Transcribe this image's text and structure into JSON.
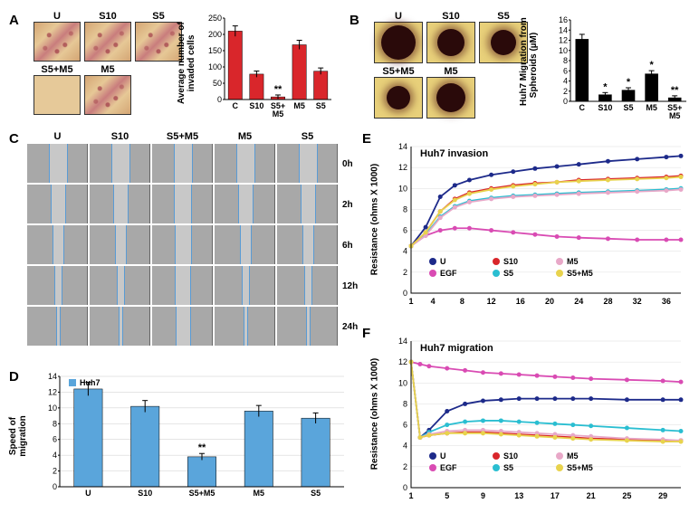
{
  "panels": {
    "A": {
      "label": "A"
    },
    "B": {
      "label": "B"
    },
    "C": {
      "label": "C"
    },
    "D": {
      "label": "D"
    },
    "E": {
      "label": "E"
    },
    "F": {
      "label": "F"
    }
  },
  "conditions": {
    "U": "U",
    "S10": "S10",
    "S5": "S5",
    "S5M5": "S5+M5",
    "M5": "M5",
    "EGF": "EGF",
    "S5+M5": "S5+M5"
  },
  "timepoints": [
    "0h",
    "2h",
    "6h",
    "12h",
    "24h"
  ],
  "chartA": {
    "type": "bar",
    "ylabel": "Average number of\ninvaded cells",
    "categories": [
      "C",
      "S10",
      "S5+\nM5",
      "M5",
      "S5"
    ],
    "values": [
      210,
      78,
      8,
      168,
      87
    ],
    "ylim": [
      0,
      250
    ],
    "ytick_step": 50,
    "bar_color": "#d9262b",
    "sig_marks": {
      "S5+\nM5": "**"
    },
    "axis_color": "#000000",
    "tick_fontsize": 9,
    "label_fontsize": 10
  },
  "chartB": {
    "type": "bar",
    "ylabel": "Huh7 Migration from\nSpheroids (µM)",
    "categories": [
      "C",
      "S10",
      "S5",
      "M5",
      "S5+\nM5"
    ],
    "values": [
      12.2,
      1.3,
      2.2,
      5.4,
      0.7
    ],
    "ylim": [
      0,
      16
    ],
    "ytick_step": 2,
    "bar_color": "#000000",
    "sig_marks": {
      "S10": "*",
      "S5": "*",
      "M5": "*",
      "S5+\nM5": "**"
    },
    "axis_color": "#000000",
    "tick_fontsize": 9,
    "label_fontsize": 10
  },
  "chartD": {
    "type": "bar",
    "ylabel": "Speed of\nmigration",
    "title_in": "Huh7",
    "legend_sq_color": "#5aa5db",
    "categories": [
      "U",
      "S10",
      "S5+M5",
      "M5",
      "S5"
    ],
    "values": [
      12.4,
      10.2,
      3.8,
      9.6,
      8.7
    ],
    "ylim": [
      0,
      14
    ],
    "ytick_step": 2,
    "bar_color": "#5aa5db",
    "sig_marks": {
      "S5+M5": "**"
    },
    "axis_color": "#000000",
    "tick_fontsize": 9,
    "label_fontsize": 10
  },
  "chartE": {
    "type": "line",
    "ylabel": "Resistance (ohms X 1000)",
    "title_in": "Huh7 invasion",
    "xlim": [
      1,
      38
    ],
    "xticks": [
      1,
      4,
      8,
      12,
      16,
      20,
      24,
      28,
      32,
      36
    ],
    "ylim": [
      0,
      14
    ],
    "ytick_step": 2,
    "series": [
      {
        "name": "U",
        "color": "#1d2a8a",
        "points": [
          [
            1,
            4.5
          ],
          [
            3,
            6.3
          ],
          [
            5,
            9.2
          ],
          [
            7,
            10.3
          ],
          [
            9,
            10.8
          ],
          [
            12,
            11.3
          ],
          [
            15,
            11.6
          ],
          [
            18,
            11.9
          ],
          [
            21,
            12.1
          ],
          [
            24,
            12.3
          ],
          [
            28,
            12.6
          ],
          [
            32,
            12.8
          ],
          [
            36,
            13.0
          ],
          [
            38,
            13.1
          ]
        ]
      },
      {
        "name": "EGF",
        "color": "#d94bb3",
        "points": [
          [
            1,
            4.5
          ],
          [
            3,
            5.5
          ],
          [
            5,
            6.0
          ],
          [
            7,
            6.2
          ],
          [
            9,
            6.2
          ],
          [
            12,
            6.0
          ],
          [
            15,
            5.8
          ],
          [
            18,
            5.6
          ],
          [
            21,
            5.4
          ],
          [
            24,
            5.3
          ],
          [
            28,
            5.2
          ],
          [
            32,
            5.1
          ],
          [
            36,
            5.1
          ],
          [
            38,
            5.1
          ]
        ]
      },
      {
        "name": "S10",
        "color": "#d9262b",
        "points": [
          [
            1,
            4.5
          ],
          [
            3,
            5.8
          ],
          [
            5,
            7.8
          ],
          [
            7,
            9.0
          ],
          [
            9,
            9.6
          ],
          [
            12,
            10.0
          ],
          [
            15,
            10.3
          ],
          [
            18,
            10.5
          ],
          [
            21,
            10.6
          ],
          [
            24,
            10.8
          ],
          [
            28,
            10.9
          ],
          [
            32,
            11.0
          ],
          [
            36,
            11.1
          ],
          [
            38,
            11.2
          ]
        ]
      },
      {
        "name": "S5",
        "color": "#2abed1",
        "points": [
          [
            1,
            4.5
          ],
          [
            3,
            5.6
          ],
          [
            5,
            7.3
          ],
          [
            7,
            8.3
          ],
          [
            9,
            8.8
          ],
          [
            12,
            9.1
          ],
          [
            15,
            9.3
          ],
          [
            18,
            9.4
          ],
          [
            21,
            9.5
          ],
          [
            24,
            9.6
          ],
          [
            28,
            9.7
          ],
          [
            32,
            9.8
          ],
          [
            36,
            9.9
          ],
          [
            38,
            10.0
          ]
        ]
      },
      {
        "name": "M5",
        "color": "#e8a8c8",
        "points": [
          [
            1,
            4.5
          ],
          [
            3,
            5.5
          ],
          [
            5,
            7.2
          ],
          [
            7,
            8.2
          ],
          [
            9,
            8.7
          ],
          [
            12,
            9.0
          ],
          [
            15,
            9.2
          ],
          [
            18,
            9.3
          ],
          [
            21,
            9.4
          ],
          [
            24,
            9.5
          ],
          [
            28,
            9.6
          ],
          [
            32,
            9.7
          ],
          [
            36,
            9.8
          ],
          [
            38,
            9.9
          ]
        ]
      },
      {
        "name": "S5+M5",
        "color": "#e8d34d",
        "points": [
          [
            1,
            4.5
          ],
          [
            3,
            5.8
          ],
          [
            5,
            7.8
          ],
          [
            7,
            8.9
          ],
          [
            9,
            9.5
          ],
          [
            12,
            9.9
          ],
          [
            15,
            10.2
          ],
          [
            18,
            10.4
          ],
          [
            21,
            10.6
          ],
          [
            24,
            10.7
          ],
          [
            28,
            10.8
          ],
          [
            32,
            10.9
          ],
          [
            36,
            11.0
          ],
          [
            38,
            11.1
          ]
        ]
      }
    ],
    "legend_layout": [
      [
        "U",
        "S10",
        "M5"
      ],
      [
        "EGF",
        "S5",
        "S5+M5"
      ]
    ],
    "axis_color": "#000000",
    "tick_fontsize": 9
  },
  "chartF": {
    "type": "line",
    "ylabel": "Resistance (ohms X 1000)",
    "title_in": "Huh7 migration",
    "xlim": [
      1,
      31
    ],
    "xticks": [
      1,
      5,
      9,
      13,
      17,
      21,
      25,
      29
    ],
    "ylim": [
      0,
      14
    ],
    "ytick_step": 2,
    "series": [
      {
        "name": "U",
        "color": "#1d2a8a",
        "points": [
          [
            1,
            12.0
          ],
          [
            2,
            4.8
          ],
          [
            3,
            5.5
          ],
          [
            5,
            7.3
          ],
          [
            7,
            8.0
          ],
          [
            9,
            8.3
          ],
          [
            11,
            8.4
          ],
          [
            13,
            8.5
          ],
          [
            15,
            8.5
          ],
          [
            17,
            8.5
          ],
          [
            19,
            8.5
          ],
          [
            21,
            8.5
          ],
          [
            25,
            8.4
          ],
          [
            29,
            8.4
          ],
          [
            31,
            8.4
          ]
        ]
      },
      {
        "name": "EGF",
        "color": "#d94bb3",
        "points": [
          [
            1,
            12.0
          ],
          [
            2,
            11.8
          ],
          [
            3,
            11.6
          ],
          [
            5,
            11.4
          ],
          [
            7,
            11.2
          ],
          [
            9,
            11.0
          ],
          [
            11,
            10.9
          ],
          [
            13,
            10.8
          ],
          [
            15,
            10.7
          ],
          [
            17,
            10.6
          ],
          [
            19,
            10.5
          ],
          [
            21,
            10.4
          ],
          [
            25,
            10.3
          ],
          [
            29,
            10.2
          ],
          [
            31,
            10.1
          ]
        ]
      },
      {
        "name": "S10",
        "color": "#d9262b",
        "points": [
          [
            1,
            12.0
          ],
          [
            2,
            4.8
          ],
          [
            3,
            5.0
          ],
          [
            5,
            5.2
          ],
          [
            7,
            5.3
          ],
          [
            9,
            5.3
          ],
          [
            11,
            5.2
          ],
          [
            13,
            5.1
          ],
          [
            15,
            5.0
          ],
          [
            17,
            4.9
          ],
          [
            19,
            4.8
          ],
          [
            21,
            4.7
          ],
          [
            25,
            4.6
          ],
          [
            29,
            4.5
          ],
          [
            31,
            4.5
          ]
        ]
      },
      {
        "name": "S5",
        "color": "#2abed1",
        "points": [
          [
            1,
            12.0
          ],
          [
            2,
            4.8
          ],
          [
            3,
            5.3
          ],
          [
            5,
            6.0
          ],
          [
            7,
            6.3
          ],
          [
            9,
            6.4
          ],
          [
            11,
            6.4
          ],
          [
            13,
            6.3
          ],
          [
            15,
            6.2
          ],
          [
            17,
            6.1
          ],
          [
            19,
            6.0
          ],
          [
            21,
            5.9
          ],
          [
            25,
            5.7
          ],
          [
            29,
            5.5
          ],
          [
            31,
            5.4
          ]
        ]
      },
      {
        "name": "M5",
        "color": "#e8a8c8",
        "points": [
          [
            1,
            12.0
          ],
          [
            2,
            4.8
          ],
          [
            3,
            5.1
          ],
          [
            5,
            5.4
          ],
          [
            7,
            5.5
          ],
          [
            9,
            5.5
          ],
          [
            11,
            5.4
          ],
          [
            13,
            5.3
          ],
          [
            15,
            5.2
          ],
          [
            17,
            5.1
          ],
          [
            19,
            5.0
          ],
          [
            21,
            4.9
          ],
          [
            25,
            4.7
          ],
          [
            29,
            4.6
          ],
          [
            31,
            4.5
          ]
        ]
      },
      {
        "name": "S5+M5",
        "color": "#e8d34d",
        "points": [
          [
            1,
            12.0
          ],
          [
            2,
            4.8
          ],
          [
            3,
            5.0
          ],
          [
            5,
            5.2
          ],
          [
            7,
            5.2
          ],
          [
            9,
            5.2
          ],
          [
            11,
            5.1
          ],
          [
            13,
            5.0
          ],
          [
            15,
            4.9
          ],
          [
            17,
            4.8
          ],
          [
            19,
            4.7
          ],
          [
            21,
            4.6
          ],
          [
            25,
            4.5
          ],
          [
            29,
            4.4
          ],
          [
            31,
            4.4
          ]
        ]
      }
    ],
    "legend_layout": [
      [
        "U",
        "S10",
        "M5"
      ],
      [
        "EGF",
        "S5",
        "S5+M5"
      ]
    ],
    "axis_color": "#000000",
    "tick_fontsize": 9
  }
}
